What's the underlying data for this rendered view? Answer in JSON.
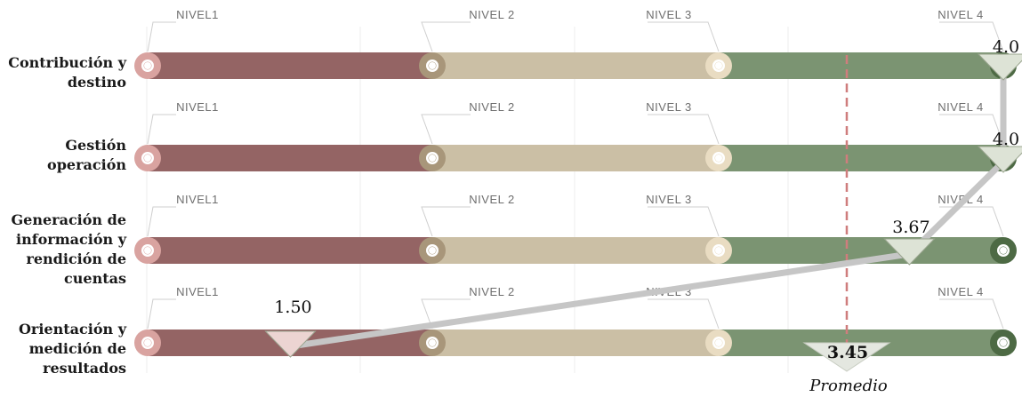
{
  "chart_data": {
    "type": "line",
    "levels": [
      "NIVEL1",
      "NIVEL 2",
      "NIVEL 3",
      "NIVEL 4"
    ],
    "categories": [
      "Contribución y\ndestino",
      "Gestión\noperación",
      "Generación de\ninformación y\nrendición de\ncuentas",
      "Orientación y\nmedición de\nresultados"
    ],
    "value_labels": [
      "4.0",
      "4.0",
      "3.67",
      "1.50"
    ],
    "values": [
      4.0,
      4.0,
      3.67,
      1.5
    ],
    "xlim": [
      1,
      4
    ],
    "average": {
      "value": 3.45,
      "label": "3.45",
      "caption": "Promedio"
    },
    "colors": {
      "level1": "#946464",
      "level2": "#cbbfa5",
      "level3": "#7b9472",
      "level4": "#4d6a44",
      "connector": "#c6c6c6",
      "marker": "#dde3d6",
      "marker_low": "#ecd4d2",
      "average_line": "#cf7d7d"
    }
  }
}
